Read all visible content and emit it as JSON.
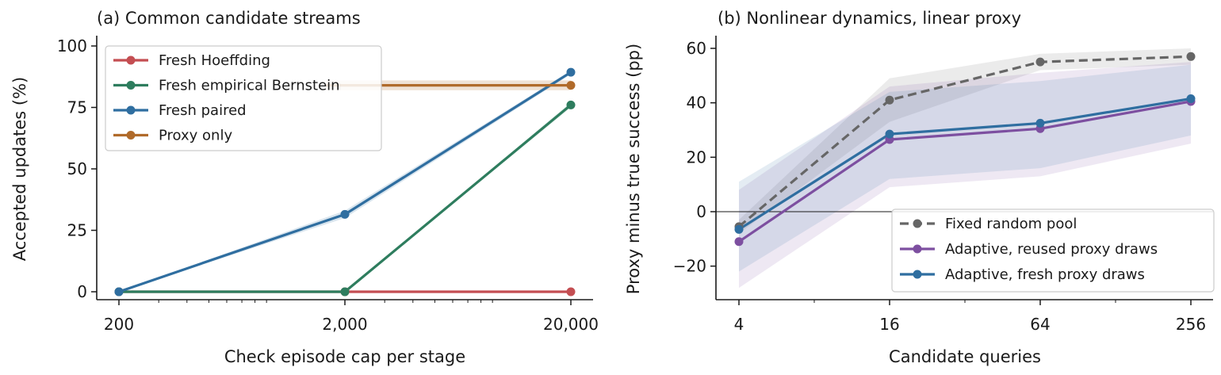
{
  "chart_data": [
    {
      "type": "line",
      "title": "(a) Common candidate streams",
      "xlabel": "Check episode cap per stage",
      "ylabel": "Accepted updates (%)",
      "x_scale": "log",
      "x": [
        200,
        2000,
        20000
      ],
      "x_tick_labels": [
        "200",
        "2,000",
        "20,000"
      ],
      "ylim": [
        -3,
        103
      ],
      "y_ticks": [
        0,
        25,
        50,
        75,
        100
      ],
      "y_tick_labels": [
        "0",
        "25",
        "50",
        "75",
        "100"
      ],
      "legend_position": "upper-left",
      "series": [
        {
          "name": "Fresh Hoeffding",
          "color": "#c44e52",
          "values": [
            0,
            0,
            0
          ],
          "band_low": [
            0,
            0,
            0
          ],
          "band_high": [
            0,
            0,
            0
          ]
        },
        {
          "name": "Fresh empirical Bernstein",
          "color": "#2e7d5e",
          "values": [
            0,
            0,
            76
          ],
          "band_low": [
            0,
            0,
            75
          ],
          "band_high": [
            0,
            0,
            77
          ]
        },
        {
          "name": "Fresh paired",
          "color": "#2f6ea0",
          "values": [
            0,
            31.5,
            89.3
          ],
          "band_low": [
            0,
            30,
            88.5
          ],
          "band_high": [
            0,
            33,
            90
          ]
        },
        {
          "name": "Proxy only",
          "color": "#b06a2a",
          "values": [
            null,
            null,
            84
          ],
          "band_low": [
            null,
            null,
            82
          ],
          "band_high": [
            null,
            null,
            86
          ],
          "extend_from_x": 1650
        }
      ]
    },
    {
      "type": "line",
      "title": "(b) Nonlinear dynamics, linear proxy",
      "xlabel": "Candidate queries",
      "ylabel": "Proxy minus true success (pp)",
      "x_scale": "log2",
      "x": [
        4,
        16,
        64,
        256
      ],
      "x_tick_labels": [
        "4",
        "16",
        "64",
        "256"
      ],
      "ylim": [
        -32,
        64
      ],
      "y_ticks": [
        -20,
        0,
        20,
        40,
        60
      ],
      "y_tick_labels": [
        "−20",
        "0",
        "20",
        "40",
        "60"
      ],
      "reference_line_y": 0,
      "legend_position": "lower-right",
      "series": [
        {
          "name": "Fixed random pool",
          "color": "#666666",
          "dashed": true,
          "values": [
            -5.5,
            41,
            55,
            57
          ],
          "band_low": [
            -8,
            33,
            52,
            54
          ],
          "band_high": [
            -3,
            49,
            58,
            60
          ]
        },
        {
          "name": "Adaptive, reused proxy draws",
          "color": "#7d4fa0",
          "values": [
            -11,
            26.5,
            30.5,
            40.5
          ],
          "band_low": [
            -28,
            9,
            13,
            25
          ],
          "band_high": [
            8,
            46,
            51,
            55
          ]
        },
        {
          "name": "Adaptive, fresh proxy draws",
          "color": "#2f6ea0",
          "values": [
            -6.5,
            28.5,
            32.5,
            41.5
          ],
          "band_low": [
            -22,
            12,
            16,
            28
          ],
          "band_high": [
            11,
            44,
            48,
            54
          ]
        }
      ]
    }
  ]
}
